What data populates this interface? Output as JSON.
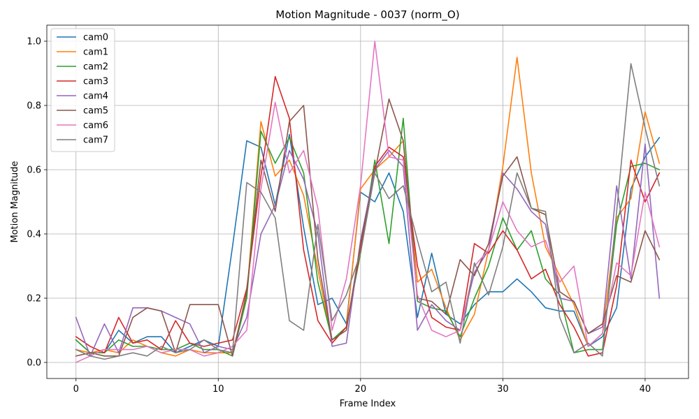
{
  "chart_data": {
    "type": "line",
    "title": "Motion Magnitude - 0037 (norm_O)",
    "xlabel": "Frame Index",
    "ylabel": "Motion Magnitude",
    "xlim": [
      -2.05,
      43.05
    ],
    "ylim": [
      -0.05,
      1.05
    ],
    "xticks": [
      0,
      10,
      20,
      30,
      40
    ],
    "yticks": [
      0.0,
      0.2,
      0.4,
      0.6,
      0.8,
      1.0
    ],
    "xtick_labels": [
      "0",
      "10",
      "20",
      "30",
      "40"
    ],
    "ytick_labels": [
      "0.0",
      "0.2",
      "0.4",
      "0.6",
      "0.8",
      "1.0"
    ],
    "grid": true,
    "legend_position": "top-left",
    "x": [
      0,
      1,
      2,
      3,
      4,
      5,
      6,
      7,
      8,
      9,
      10,
      11,
      12,
      13,
      14,
      15,
      16,
      17,
      18,
      19,
      20,
      21,
      22,
      23,
      24,
      25,
      26,
      27,
      28,
      29,
      30,
      31,
      32,
      33,
      34,
      35,
      36,
      37,
      38,
      39,
      40,
      41
    ],
    "series": [
      {
        "name": "cam0",
        "color": "#1f77b4",
        "values": [
          0.07,
          0.03,
          0.03,
          0.1,
          0.06,
          0.08,
          0.08,
          0.03,
          0.05,
          0.07,
          0.05,
          0.36,
          0.69,
          0.67,
          0.49,
          0.71,
          0.42,
          0.18,
          0.2,
          0.12,
          0.53,
          0.5,
          0.59,
          0.47,
          0.14,
          0.34,
          0.15,
          0.12,
          0.18,
          0.22,
          0.22,
          0.26,
          0.22,
          0.17,
          0.16,
          0.16,
          0.05,
          0.08,
          0.17,
          0.54,
          0.64,
          0.7
        ]
      },
      {
        "name": "cam1",
        "color": "#ff7f0e",
        "values": [
          0.04,
          0.03,
          0.04,
          0.03,
          0.07,
          0.05,
          0.03,
          0.02,
          0.04,
          0.03,
          0.03,
          0.03,
          0.21,
          0.75,
          0.58,
          0.63,
          0.52,
          0.29,
          0.06,
          0.11,
          0.54,
          0.6,
          0.64,
          0.69,
          0.25,
          0.29,
          0.17,
          0.07,
          0.15,
          0.35,
          0.61,
          0.95,
          0.59,
          0.36,
          0.27,
          0.18,
          0.05,
          0.09,
          0.45,
          0.51,
          0.78,
          0.62
        ]
      },
      {
        "name": "cam2",
        "color": "#2ca02c",
        "values": [
          0.07,
          0.03,
          0.03,
          0.07,
          0.05,
          0.05,
          0.04,
          0.04,
          0.06,
          0.04,
          0.04,
          0.02,
          0.2,
          0.72,
          0.62,
          0.7,
          0.59,
          0.25,
          0.07,
          0.11,
          0.34,
          0.63,
          0.37,
          0.76,
          0.19,
          0.17,
          0.16,
          0.08,
          0.2,
          0.3,
          0.45,
          0.35,
          0.41,
          0.26,
          0.21,
          0.03,
          0.04,
          0.04,
          0.43,
          0.61,
          0.62,
          0.6
        ]
      },
      {
        "name": "cam3",
        "color": "#d62728",
        "values": [
          0.08,
          0.05,
          0.03,
          0.14,
          0.06,
          0.07,
          0.04,
          0.13,
          0.06,
          0.05,
          0.06,
          0.07,
          0.23,
          0.58,
          0.89,
          0.76,
          0.35,
          0.13,
          0.06,
          0.11,
          0.35,
          0.61,
          0.67,
          0.64,
          0.3,
          0.14,
          0.11,
          0.1,
          0.37,
          0.34,
          0.41,
          0.35,
          0.26,
          0.29,
          0.18,
          0.11,
          0.02,
          0.03,
          0.24,
          0.63,
          0.5,
          0.59
        ]
      },
      {
        "name": "cam4",
        "color": "#9467bd",
        "values": [
          0.14,
          0.02,
          0.12,
          0.03,
          0.17,
          0.17,
          0.16,
          0.14,
          0.12,
          0.03,
          0.05,
          0.04,
          0.14,
          0.4,
          0.49,
          0.66,
          0.57,
          0.4,
          0.05,
          0.06,
          0.38,
          0.6,
          0.66,
          0.61,
          0.1,
          0.18,
          0.13,
          0.1,
          0.28,
          0.35,
          0.59,
          0.54,
          0.47,
          0.43,
          0.2,
          0.19,
          0.09,
          0.11,
          0.55,
          0.26,
          0.68,
          0.2
        ]
      },
      {
        "name": "cam5",
        "color": "#8c564b",
        "values": [
          0.02,
          0.03,
          0.02,
          0.02,
          0.14,
          0.17,
          0.16,
          0.03,
          0.18,
          0.18,
          0.18,
          0.02,
          0.22,
          0.63,
          0.47,
          0.75,
          0.8,
          0.32,
          0.07,
          0.1,
          0.37,
          0.59,
          0.82,
          0.69,
          0.2,
          0.19,
          0.15,
          0.32,
          0.27,
          0.37,
          0.58,
          0.64,
          0.48,
          0.46,
          0.22,
          0.19,
          0.09,
          0.12,
          0.27,
          0.25,
          0.41,
          0.32
        ]
      },
      {
        "name": "cam6",
        "color": "#e377c2",
        "values": [
          0.0,
          0.02,
          0.04,
          0.04,
          0.04,
          0.05,
          0.03,
          0.04,
          0.04,
          0.02,
          0.03,
          0.05,
          0.1,
          0.54,
          0.81,
          0.59,
          0.66,
          0.48,
          0.1,
          0.26,
          0.55,
          1.0,
          0.64,
          0.63,
          0.21,
          0.1,
          0.08,
          0.1,
          0.3,
          0.35,
          0.5,
          0.41,
          0.36,
          0.38,
          0.25,
          0.3,
          0.05,
          0.09,
          0.31,
          0.27,
          0.53,
          0.36
        ]
      },
      {
        "name": "cam7",
        "color": "#7f7f7f",
        "values": [
          0.04,
          0.02,
          0.01,
          0.02,
          0.03,
          0.02,
          0.05,
          0.03,
          0.04,
          0.07,
          0.04,
          0.03,
          0.56,
          0.53,
          0.45,
          0.13,
          0.1,
          0.43,
          0.13,
          0.21,
          0.34,
          0.59,
          0.51,
          0.55,
          0.38,
          0.22,
          0.25,
          0.06,
          0.31,
          0.21,
          0.36,
          0.59,
          0.48,
          0.47,
          0.14,
          0.03,
          0.06,
          0.02,
          0.47,
          0.93,
          0.73,
          0.55
        ]
      }
    ]
  }
}
